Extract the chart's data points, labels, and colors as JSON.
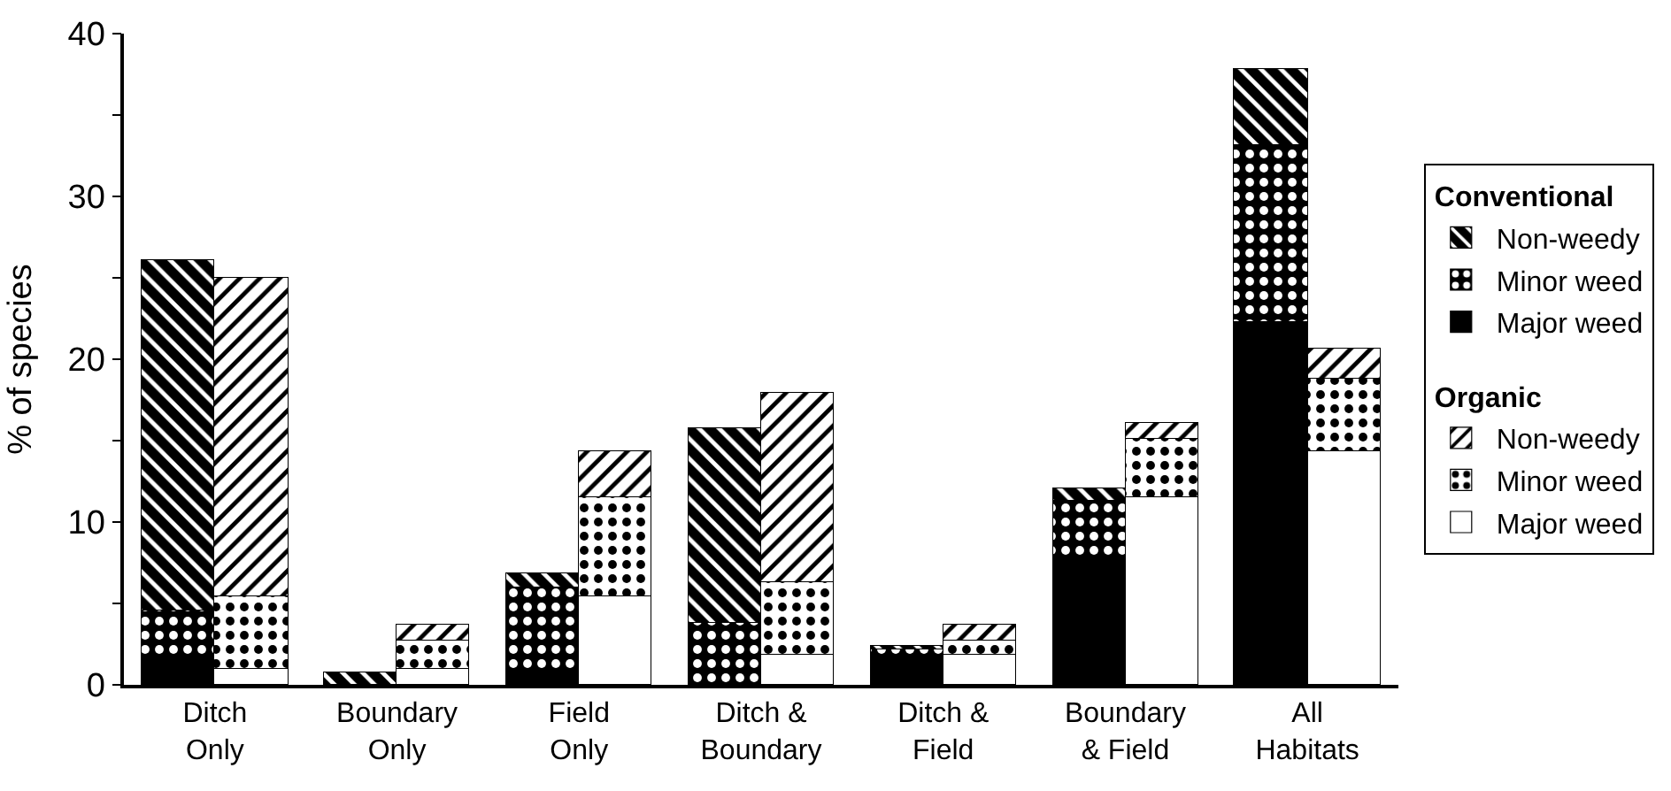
{
  "chart_data": [
    {
      "type": "bar",
      "stacked": true,
      "ylabel": "% of species",
      "legend_title": "Conventional",
      "categories": [
        "Ditch\nOnly",
        "Boundary\nOnly",
        "Field\nOnly",
        "Ditch &\nBoundary",
        "Ditch &\nField",
        "Boundary\n& Field",
        "All\nHabitats"
      ],
      "ylim": [
        0,
        40
      ],
      "yticks": [
        0,
        {
          "value": 5,
          "label": null
        },
        10,
        {
          "value": 15,
          "label": null
        },
        20,
        {
          "value": 25,
          "label": null
        },
        30,
        {
          "value": 35,
          "label": null
        },
        40
      ],
      "grid": false,
      "legend": "right",
      "series": [
        {
          "name": "Major weed",
          "color": "#000000",
          "values": [
            1.5,
            0,
            1.0,
            0,
            1.8,
            7.6,
            22.3
          ]
        },
        {
          "name": "Minor weed",
          "color": "#000000",
          "values": [
            3.1,
            0,
            5.0,
            3.8,
            0.4,
            3.7,
            10.9
          ]
        },
        {
          "name": "Non-weedy",
          "color": "#000000",
          "values": [
            21.5,
            0.8,
            0.8,
            12.0,
            0.2,
            0.8,
            4.6
          ]
        }
      ]
    },
    {
      "type": "bar",
      "stacked": true,
      "legend_title": "Organic",
      "categories": [
        null,
        null,
        null,
        null,
        null,
        null,
        null
      ],
      "ylim": [
        0,
        40
      ],
      "grid": false,
      "legend": "right",
      "series": [
        {
          "name": "Major weed",
          "color": "#ffffff",
          "values": [
            1.0,
            1.0,
            5.4,
            1.8,
            1.8,
            11.5,
            14.3
          ]
        },
        {
          "name": "Minor weed",
          "color": "#000000",
          "values": [
            4.4,
            1.7,
            6.1,
            4.5,
            0.9,
            3.6,
            4.5
          ]
        },
        {
          "name": "Non-weedy",
          "color": "#000000",
          "values": [
            19.6,
            1.0,
            2.9,
            11.6,
            1.0,
            1.0,
            1.8
          ]
        }
      ]
    }
  ]
}
